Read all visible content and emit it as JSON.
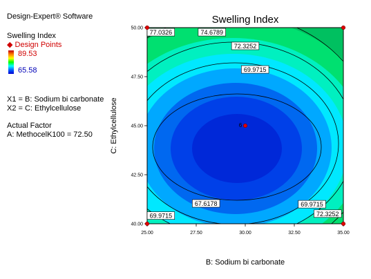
{
  "software": "Design-Expert® Software",
  "legend": {
    "response": "Swelling Index",
    "design_points_label": "Design Points",
    "max_label": "89.53",
    "min_label": "65.58",
    "max_color": "#c00000",
    "min_color": "#0000d0"
  },
  "factors": {
    "x1": "X1 = B: Sodium bi carbonate",
    "x2": "X2 = C: Ethylcellulose",
    "actual_title": "Actual Factor",
    "actual_value": "A: MethocelK100 = 72.50"
  },
  "chart_data": {
    "type": "contour",
    "title": "Swelling Index",
    "xlabel": "B: Sodium bi carbonate",
    "ylabel": "C: Ethylcellulose",
    "xlim": [
      25,
      35
    ],
    "ylim": [
      40,
      50
    ],
    "xticks": [
      "25.00",
      "27.50",
      "30.00",
      "32.50",
      "35.00"
    ],
    "yticks": [
      "40.00",
      "42.50",
      "45.00",
      "47.50",
      "50.00"
    ],
    "contour_levels": [
      67.6178,
      69.9715,
      72.3252,
      74.6789,
      77.0326
    ],
    "contour_labels": [
      {
        "text": "77.0326",
        "x": 25.7,
        "y": 49.75
      },
      {
        "text": "74.6789",
        "x": 28.3,
        "y": 49.75
      },
      {
        "text": "72.3252",
        "x": 30.0,
        "y": 49.05
      },
      {
        "text": "69.9715",
        "x": 30.5,
        "y": 47.85
      },
      {
        "text": "67.6178",
        "x": 28.0,
        "y": 41.02
      },
      {
        "text": "69.9715",
        "x": 33.4,
        "y": 40.98
      },
      {
        "text": "72.3252",
        "x": 34.2,
        "y": 40.5
      },
      {
        "text": "69.9715",
        "x": 25.7,
        "y": 40.4
      }
    ],
    "design_points": [
      {
        "x": 25,
        "y": 50
      },
      {
        "x": 35,
        "y": 50
      },
      {
        "x": 25,
        "y": 40
      },
      {
        "x": 35,
        "y": 40
      },
      {
        "x": 30,
        "y": 45,
        "label": "6"
      }
    ],
    "grid": false
  }
}
